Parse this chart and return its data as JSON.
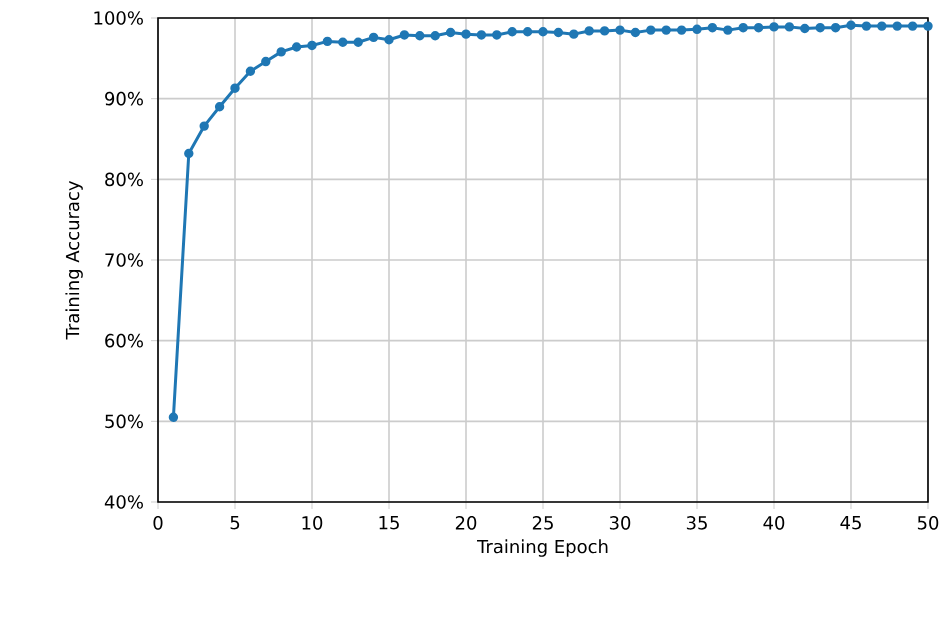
{
  "chart_data": {
    "type": "line",
    "xlabel": "Training Epoch",
    "ylabel": "Training Accuracy",
    "x": [
      1,
      2,
      3,
      4,
      5,
      6,
      7,
      8,
      9,
      10,
      11,
      12,
      13,
      14,
      15,
      16,
      17,
      18,
      19,
      20,
      21,
      22,
      23,
      24,
      25,
      26,
      27,
      28,
      29,
      30,
      31,
      32,
      33,
      34,
      35,
      36,
      37,
      38,
      39,
      40,
      41,
      42,
      43,
      44,
      45,
      46,
      47,
      48,
      49,
      50
    ],
    "series": [
      {
        "color": "#1f77b4",
        "values": [
          50.5,
          83.2,
          86.6,
          89.0,
          91.3,
          93.4,
          94.6,
          95.8,
          96.4,
          96.6,
          97.1,
          97.0,
          97.0,
          97.6,
          97.3,
          97.9,
          97.8,
          97.8,
          98.2,
          98.0,
          97.9,
          97.9,
          98.3,
          98.3,
          98.3,
          98.2,
          98.0,
          98.4,
          98.4,
          98.5,
          98.2,
          98.5,
          98.5,
          98.5,
          98.6,
          98.8,
          98.5,
          98.8,
          98.8,
          98.9,
          98.9,
          98.7,
          98.8,
          98.8,
          99.1,
          99.0,
          99.0,
          99.0,
          99.0,
          99.0
        ]
      }
    ],
    "xlim": [
      0,
      50
    ],
    "xticks": [
      0,
      5,
      10,
      15,
      20,
      25,
      30,
      35,
      40,
      45,
      50
    ],
    "ylim": [
      40,
      100
    ],
    "yticks": [
      {
        "value": 40,
        "label": "40%"
      },
      {
        "value": 50,
        "label": "50%"
      },
      {
        "value": 60,
        "label": "60%"
      },
      {
        "value": 70,
        "label": "70%"
      },
      {
        "value": 80,
        "label": "80%"
      },
      {
        "value": 90,
        "label": "90%"
      },
      {
        "value": 100,
        "label": "100%"
      }
    ],
    "grid": true,
    "marker": "circle",
    "line_style": "solid"
  }
}
